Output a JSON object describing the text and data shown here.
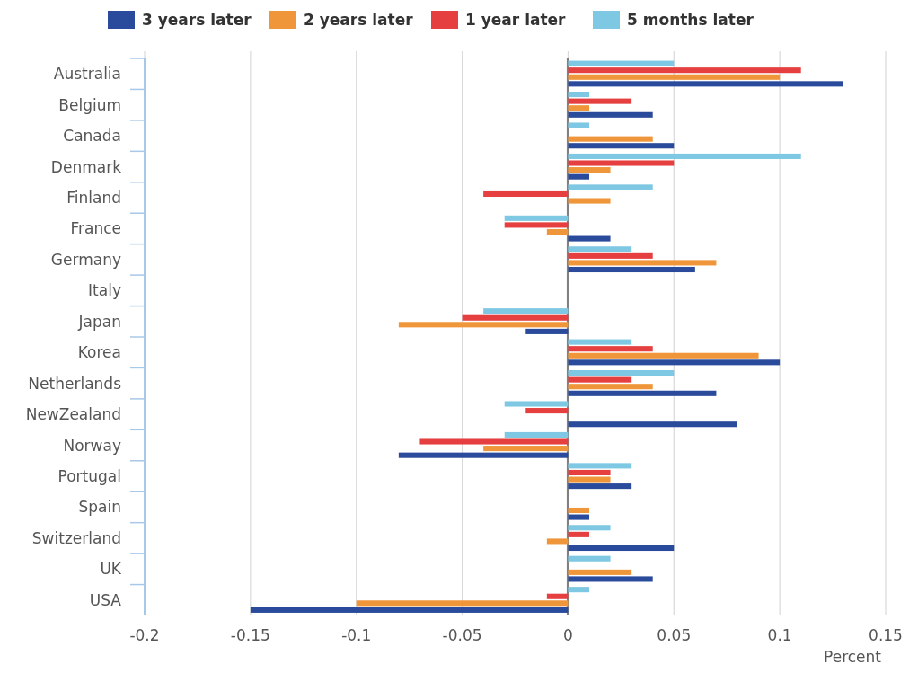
{
  "chart_data": {
    "type": "bar",
    "orientation": "horizontal",
    "xlabel": "Percent",
    "categories": [
      "Australia",
      "Belgium",
      "Canada",
      "Denmark",
      "Finland",
      "France",
      "Germany",
      "Italy",
      "Japan",
      "Korea",
      "Netherlands",
      "NewZealand",
      "Norway",
      "Portugal",
      "Spain",
      "Switzerland",
      "UK",
      "USA"
    ],
    "series": [
      {
        "name": "3 years later",
        "color": "#2a4b9b",
        "values": [
          0.13,
          0.04,
          0.05,
          0.01,
          0,
          0.02,
          0.06,
          0,
          -0.02,
          0.1,
          0.07,
          0.08,
          -0.08,
          0.03,
          0.01,
          0.05,
          0.04,
          -0.15
        ]
      },
      {
        "name": "2 years later",
        "color": "#f0963a",
        "values": [
          0.1,
          0.01,
          0.04,
          0.02,
          0.02,
          -0.01,
          0.07,
          0,
          -0.08,
          0.09,
          0.04,
          0,
          -0.04,
          0.02,
          0.01,
          -0.01,
          0.03,
          -0.1
        ]
      },
      {
        "name": "1 year later",
        "color": "#e5403f",
        "values": [
          0.11,
          0.03,
          0,
          0.05,
          -0.04,
          -0.03,
          0.04,
          0,
          -0.05,
          0.04,
          0.03,
          -0.02,
          -0.07,
          0.02,
          0,
          0.01,
          0,
          -0.01
        ]
      },
      {
        "name": "5 months later",
        "color": "#7ec8e3",
        "values": [
          0.05,
          0.01,
          0.01,
          0.11,
          0.04,
          -0.03,
          0.03,
          0,
          -0.04,
          0.03,
          0.05,
          -0.03,
          -0.03,
          0.03,
          0,
          0.02,
          0.02,
          0.01
        ]
      }
    ],
    "xlim": [
      -0.2,
      0.15
    ],
    "xticks": [
      -0.2,
      -0.15,
      -0.1,
      -0.05,
      0,
      0.05,
      0.1,
      0.15
    ],
    "grid": "x",
    "legend": "top",
    "ref_lines": [
      {
        "axis": "x",
        "value": 0,
        "color": "#808080"
      }
    ]
  }
}
